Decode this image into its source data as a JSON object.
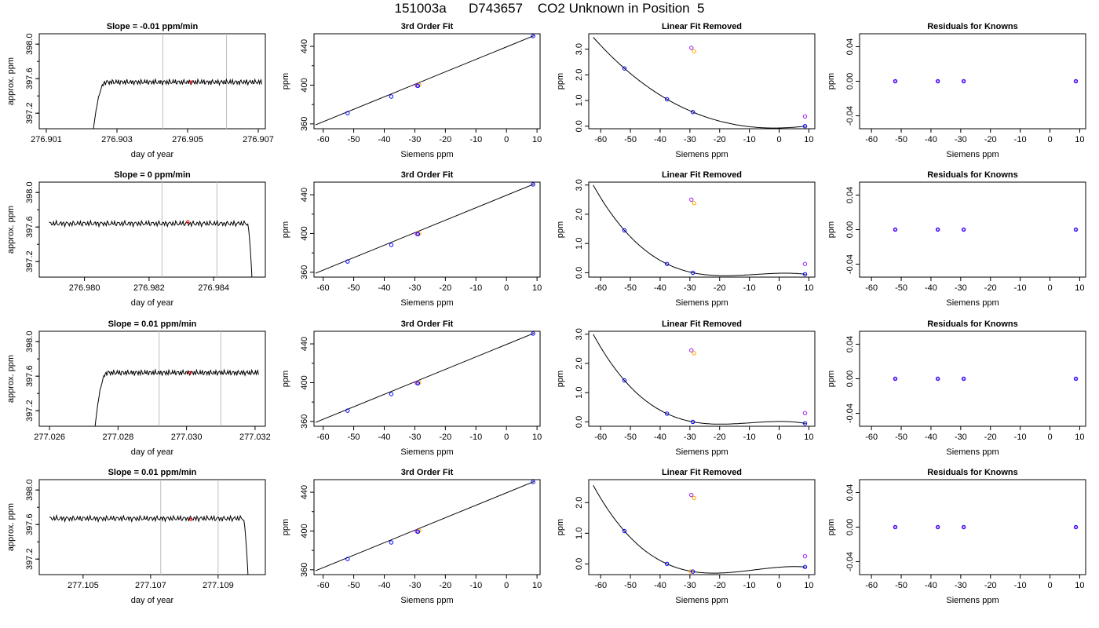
{
  "page": {
    "title": "151003a      D743657    CO2 Unknown in Position  5"
  },
  "colors": {
    "trace": "#000000",
    "vline": "#bebebe",
    "known_point": "#0000ff",
    "unknown_point_a": "#a020f0",
    "unknown_point_b": "#ffa500",
    "time_marker": "#ff0000"
  },
  "chart_data": [
    {
      "id": "r1-time",
      "type": "line",
      "title": "Slope =  -0.01  ppm/min",
      "xlabel": "day of year",
      "ylabel": "approx. ppm",
      "xlim": [
        276.9008,
        276.9072
      ],
      "ylim": [
        397.02,
        398.12
      ],
      "x_ticks": [
        "276.901",
        "276.903",
        "276.905",
        "276.907"
      ],
      "x_tick_values": [
        276.901,
        276.903,
        276.905,
        276.907
      ],
      "y_ticks": [
        "397.2",
        "397.6",
        "398.0"
      ],
      "y_tick_values": [
        397.2,
        397.6,
        398.0
      ],
      "vlines": [
        276.9043,
        276.9061
      ],
      "trace": {
        "start": 276.9023,
        "end": 276.9071,
        "plateau": 397.56,
        "shape": "rise",
        "rise_end": 276.9027,
        "base": 396.9,
        "pre_ramp": 397.35
      },
      "marker": {
        "x": 276.9051,
        "y": 397.56
      }
    },
    {
      "id": "r1-fit",
      "type": "line",
      "title": "3rd Order Fit",
      "xlabel": "Siemens ppm",
      "ylabel": "ppm",
      "xlim": [
        -63,
        11
      ],
      "ylim": [
        355,
        453
      ],
      "x_ticks": [
        "-60",
        "-50",
        "-40",
        "-30",
        "-20",
        "-10",
        "0",
        "10"
      ],
      "x_tick_values": [
        -60,
        -50,
        -40,
        -30,
        -20,
        -10,
        0,
        10
      ],
      "y_ticks": [
        "360",
        "400",
        "440"
      ],
      "y_tick_values": [
        360,
        400,
        440
      ],
      "line": {
        "x": [
          -62.5,
          9
        ],
        "y": [
          359,
          451
        ]
      },
      "known_points": [
        {
          "x": -52,
          "y": 371.1
        },
        {
          "x": -37.7,
          "y": 388.2
        },
        {
          "x": -29,
          "y": 399.3
        },
        {
          "x": 8.7,
          "y": 450.6
        }
      ],
      "unknown_points": [
        {
          "x": -29.3,
          "y": 399.6
        },
        {
          "x": -28.6,
          "y": 400.2
        }
      ]
    },
    {
      "id": "r1-lin",
      "type": "scatter",
      "title": "Linear Fit Removed",
      "xlabel": "Siemens ppm",
      "ylabel": "ppm",
      "xlim": [
        -64,
        12
      ],
      "ylim": [
        -0.1,
        3.6
      ],
      "x_ticks": [
        "-60",
        "-50",
        "-40",
        "-30",
        "-20",
        "-10",
        "0",
        "10"
      ],
      "x_tick_values": [
        -60,
        -50,
        -40,
        -30,
        -20,
        -10,
        0,
        10
      ],
      "y_ticks": [
        "0.0",
        "1.0",
        "2.0",
        "3.0"
      ],
      "y_tick_values": [
        0,
        1,
        2,
        3
      ],
      "curve": {
        "from": -62.5,
        "to": 9,
        "points": [
          [
            -52,
            2.25
          ],
          [
            -37.7,
            1.05
          ],
          [
            -29,
            0.55
          ],
          [
            8.7,
            0.0
          ]
        ]
      },
      "known_points": [
        {
          "x": -52,
          "y": 2.25
        },
        {
          "x": -37.7,
          "y": 1.05
        },
        {
          "x": -29,
          "y": 0.55
        },
        {
          "x": 8.7,
          "y": 0.0
        }
      ],
      "unknown_points": [
        {
          "x": -29.5,
          "y": 3.05
        },
        {
          "x": -28.6,
          "y": 2.92
        },
        {
          "x": 8.7,
          "y": 0.38
        }
      ]
    },
    {
      "id": "r1-res",
      "type": "scatter",
      "title": "Residuals for Knowns",
      "xlabel": "Siemens ppm",
      "ylabel": "ppm",
      "xlim": [
        -64,
        12
      ],
      "ylim": [
        -0.055,
        0.055
      ],
      "x_ticks": [
        "-60",
        "-50",
        "-40",
        "-30",
        "-20",
        "-10",
        "0",
        "10"
      ],
      "x_tick_values": [
        -60,
        -50,
        -40,
        -30,
        -20,
        -10,
        0,
        10
      ],
      "y_ticks": [
        "-0.04",
        "0.00",
        "0.04"
      ],
      "y_tick_values": [
        -0.04,
        0,
        0.04
      ],
      "known_points": [
        {
          "x": -52,
          "y": 0
        },
        {
          "x": -37.7,
          "y": 0
        },
        {
          "x": -29,
          "y": 0
        },
        {
          "x": 8.7,
          "y": 0
        }
      ]
    },
    {
      "id": "r2-time",
      "type": "line",
      "title": "Slope =  0  ppm/min",
      "xlabel": "day of year",
      "ylabel": "approx. ppm",
      "xlim": [
        276.9786,
        276.9856
      ],
      "ylim": [
        397.02,
        398.12
      ],
      "x_ticks": [
        "276.980",
        "276.982",
        "276.984"
      ],
      "x_tick_values": [
        276.98,
        276.982,
        276.984
      ],
      "y_ticks": [
        "397.2",
        "397.6",
        "398.0"
      ],
      "y_tick_values": [
        397.2,
        397.6,
        398.0
      ],
      "vlines": [
        276.9824,
        276.9841
      ],
      "trace": {
        "start": 276.9789,
        "end": 276.9852,
        "plateau": 397.64,
        "shape": "fall",
        "fall_start": 276.98505,
        "base": 396.9
      },
      "marker": {
        "x": 276.9832,
        "y": 397.66
      }
    },
    {
      "id": "r2-fit",
      "type": "line",
      "title": "3rd Order Fit",
      "xlabel": "Siemens ppm",
      "ylabel": "ppm",
      "xlim": [
        -63,
        11
      ],
      "ylim": [
        355,
        453
      ],
      "x_ticks": [
        "-60",
        "-50",
        "-40",
        "-30",
        "-20",
        "-10",
        "0",
        "10"
      ],
      "x_tick_values": [
        -60,
        -50,
        -40,
        -30,
        -20,
        -10,
        0,
        10
      ],
      "y_ticks": [
        "360",
        "400",
        "440"
      ],
      "y_tick_values": [
        360,
        400,
        440
      ],
      "line": {
        "x": [
          -62.5,
          9
        ],
        "y": [
          359,
          451
        ]
      },
      "known_points": [
        {
          "x": -52,
          "y": 371.1
        },
        {
          "x": -37.7,
          "y": 388.2
        },
        {
          "x": -29,
          "y": 399.3
        },
        {
          "x": 8.7,
          "y": 450.6
        }
      ],
      "unknown_points": [
        {
          "x": -29.3,
          "y": 399.7
        },
        {
          "x": -28.6,
          "y": 400.2
        }
      ]
    },
    {
      "id": "r2-lin",
      "type": "scatter",
      "title": "Linear Fit Removed",
      "xlabel": "Siemens ppm",
      "ylabel": "ppm",
      "xlim": [
        -64,
        12
      ],
      "ylim": [
        -0.15,
        3.1
      ],
      "x_ticks": [
        "-60",
        "-50",
        "-40",
        "-30",
        "-20",
        "-10",
        "0",
        "10"
      ],
      "x_tick_values": [
        -60,
        -50,
        -40,
        -30,
        -20,
        -10,
        0,
        10
      ],
      "y_ticks": [
        "0.0",
        "1.0",
        "2.0",
        "3.0"
      ],
      "y_tick_values": [
        0,
        1,
        2,
        3
      ],
      "curve": {
        "from": -62.5,
        "to": 9,
        "points": [
          [
            -52,
            1.45
          ],
          [
            -37.7,
            0.3
          ],
          [
            -29,
            0.0
          ],
          [
            8.7,
            -0.05
          ]
        ]
      },
      "known_points": [
        {
          "x": -52,
          "y": 1.45
        },
        {
          "x": -37.7,
          "y": 0.3
        },
        {
          "x": -29,
          "y": 0.0
        },
        {
          "x": 8.7,
          "y": -0.05
        }
      ],
      "unknown_points": [
        {
          "x": -29.5,
          "y": 2.5
        },
        {
          "x": -28.6,
          "y": 2.38
        },
        {
          "x": 8.7,
          "y": 0.3
        }
      ]
    },
    {
      "id": "r2-res",
      "type": "scatter",
      "title": "Residuals for Knowns",
      "xlabel": "Siemens ppm",
      "ylabel": "ppm",
      "xlim": [
        -64,
        12
      ],
      "ylim": [
        -0.055,
        0.055
      ],
      "x_ticks": [
        "-60",
        "-50",
        "-40",
        "-30",
        "-20",
        "-10",
        "0",
        "10"
      ],
      "x_tick_values": [
        -60,
        -50,
        -40,
        -30,
        -20,
        -10,
        0,
        10
      ],
      "y_ticks": [
        "-0.04",
        "0.00",
        "0.04"
      ],
      "y_tick_values": [
        -0.04,
        0,
        0.04
      ],
      "known_points": [
        {
          "x": -52,
          "y": 0
        },
        {
          "x": -37.7,
          "y": 0
        },
        {
          "x": -29,
          "y": 0
        },
        {
          "x": 8.7,
          "y": 0
        }
      ]
    },
    {
      "id": "r3-time",
      "type": "line",
      "title": "Slope =  0.01  ppm/min",
      "xlabel": "day of year",
      "ylabel": "approx. ppm",
      "xlim": [
        277.0257,
        277.0323
      ],
      "ylim": [
        397.02,
        398.12
      ],
      "x_ticks": [
        "277.026",
        "277.028",
        "277.030",
        "277.032"
      ],
      "x_tick_values": [
        277.026,
        277.028,
        277.03,
        277.032
      ],
      "y_ticks": [
        "397.2",
        "397.6",
        "398.0"
      ],
      "y_tick_values": [
        397.2,
        397.6,
        398.0
      ],
      "vlines": [
        277.0292,
        277.031
      ],
      "trace": {
        "start": 277.0273,
        "end": 277.0321,
        "plateau": 397.64,
        "shape": "rise",
        "rise_end": 277.0277,
        "base": 396.9,
        "pre_ramp": 397.3
      },
      "marker": {
        "x": 277.0301,
        "y": 397.64
      }
    },
    {
      "id": "r3-fit",
      "type": "line",
      "title": "3rd Order Fit",
      "xlabel": "Siemens ppm",
      "ylabel": "ppm",
      "xlim": [
        -63,
        11
      ],
      "ylim": [
        355,
        453
      ],
      "x_ticks": [
        "-60",
        "-50",
        "-40",
        "-30",
        "-20",
        "-10",
        "0",
        "10"
      ],
      "x_tick_values": [
        -60,
        -50,
        -40,
        -30,
        -20,
        -10,
        0,
        10
      ],
      "y_ticks": [
        "360",
        "400",
        "440"
      ],
      "y_tick_values": [
        360,
        400,
        440
      ],
      "line": {
        "x": [
          -62.5,
          9
        ],
        "y": [
          359,
          451
        ]
      },
      "known_points": [
        {
          "x": -52,
          "y": 371.1
        },
        {
          "x": -37.7,
          "y": 388.2
        },
        {
          "x": -29,
          "y": 399.3
        },
        {
          "x": 8.7,
          "y": 450.6
        }
      ],
      "unknown_points": [
        {
          "x": -29.3,
          "y": 399.7
        },
        {
          "x": -28.6,
          "y": 400.2
        }
      ]
    },
    {
      "id": "r3-lin",
      "type": "scatter",
      "title": "Linear Fit Removed",
      "xlabel": "Siemens ppm",
      "ylabel": "ppm",
      "xlim": [
        -64,
        12
      ],
      "ylim": [
        -0.15,
        3.1
      ],
      "x_ticks": [
        "-60",
        "-50",
        "-40",
        "-30",
        "-20",
        "-10",
        "0",
        "10"
      ],
      "x_tick_values": [
        -60,
        -50,
        -40,
        -30,
        -20,
        -10,
        0,
        10
      ],
      "y_ticks": [
        "0.0",
        "1.0",
        "2.0",
        "3.0"
      ],
      "y_tick_values": [
        0,
        1,
        2,
        3
      ],
      "curve": {
        "from": -62.5,
        "to": 9,
        "points": [
          [
            -52,
            1.42
          ],
          [
            -37.7,
            0.28
          ],
          [
            -29,
            0.0
          ],
          [
            8.7,
            -0.05
          ]
        ]
      },
      "known_points": [
        {
          "x": -52,
          "y": 1.42
        },
        {
          "x": -37.7,
          "y": 0.28
        },
        {
          "x": -29,
          "y": 0.0
        },
        {
          "x": 8.7,
          "y": -0.05
        }
      ],
      "unknown_points": [
        {
          "x": -29.5,
          "y": 2.45
        },
        {
          "x": -28.6,
          "y": 2.35
        },
        {
          "x": 8.7,
          "y": 0.3
        }
      ]
    },
    {
      "id": "r3-res",
      "type": "scatter",
      "title": "Residuals for Knowns",
      "xlabel": "Siemens ppm",
      "ylabel": "ppm",
      "xlim": [
        -64,
        12
      ],
      "ylim": [
        -0.055,
        0.055
      ],
      "x_ticks": [
        "-60",
        "-50",
        "-40",
        "-30",
        "-20",
        "-10",
        "0",
        "10"
      ],
      "x_tick_values": [
        -60,
        -50,
        -40,
        -30,
        -20,
        -10,
        0,
        10
      ],
      "y_ticks": [
        "-0.04",
        "0.00",
        "0.04"
      ],
      "y_tick_values": [
        -0.04,
        0,
        0.04
      ],
      "known_points": [
        {
          "x": -52,
          "y": 0
        },
        {
          "x": -37.7,
          "y": 0
        },
        {
          "x": -29,
          "y": 0
        },
        {
          "x": 8.7,
          "y": 0
        }
      ]
    },
    {
      "id": "r4-time",
      "type": "line",
      "title": "Slope =  0.01  ppm/min",
      "xlabel": "day of year",
      "ylabel": "approx. ppm",
      "xlim": [
        277.1037,
        277.1104
      ],
      "ylim": [
        397.02,
        398.12
      ],
      "x_ticks": [
        "277.105",
        "277.107",
        "277.109"
      ],
      "x_tick_values": [
        277.105,
        277.107,
        277.109
      ],
      "y_ticks": [
        "397.2",
        "397.6",
        "398.0"
      ],
      "y_tick_values": [
        397.2,
        397.6,
        398.0
      ],
      "vlines": [
        277.1073,
        277.109
      ],
      "trace": {
        "start": 277.104,
        "end": 277.1099,
        "plateau": 397.67,
        "shape": "fall",
        "fall_start": 277.10975,
        "base": 396.9
      },
      "marker": {
        "x": 277.1082,
        "y": 397.66
      }
    },
    {
      "id": "r4-fit",
      "type": "line",
      "title": "3rd Order Fit",
      "xlabel": "Siemens ppm",
      "ylabel": "ppm",
      "xlim": [
        -63,
        11
      ],
      "ylim": [
        355,
        453
      ],
      "x_ticks": [
        "-60",
        "-50",
        "-40",
        "-30",
        "-20",
        "-10",
        "0",
        "10"
      ],
      "x_tick_values": [
        -60,
        -50,
        -40,
        -30,
        -20,
        -10,
        0,
        10
      ],
      "y_ticks": [
        "360",
        "400",
        "440"
      ],
      "y_tick_values": [
        360,
        400,
        440
      ],
      "line": {
        "x": [
          -62.5,
          9
        ],
        "y": [
          359,
          451
        ]
      },
      "known_points": [
        {
          "x": -52,
          "y": 371.1
        },
        {
          "x": -37.7,
          "y": 388.2
        },
        {
          "x": -29,
          "y": 399.3
        },
        {
          "x": 8.7,
          "y": 450.6
        }
      ],
      "unknown_points": [
        {
          "x": -29.3,
          "y": 399.7
        },
        {
          "x": -28.6,
          "y": 400.2
        }
      ]
    },
    {
      "id": "r4-lin",
      "type": "scatter",
      "title": "Linear Fit Removed",
      "xlabel": "Siemens ppm",
      "ylabel": "ppm",
      "xlim": [
        -64,
        12
      ],
      "ylim": [
        -0.35,
        2.75
      ],
      "x_ticks": [
        "-60",
        "-50",
        "-40",
        "-30",
        "-20",
        "-10",
        "0",
        "10"
      ],
      "x_tick_values": [
        -60,
        -50,
        -40,
        -30,
        -20,
        -10,
        0,
        10
      ],
      "y_ticks": [
        "0.0",
        "1.0",
        "2.0"
      ],
      "y_tick_values": [
        0,
        1,
        2
      ],
      "curve": {
        "from": -62.5,
        "to": 9,
        "points": [
          [
            -52,
            1.07
          ],
          [
            -37.7,
            0.0
          ],
          [
            -29,
            -0.25
          ],
          [
            8.7,
            -0.1
          ]
        ]
      },
      "known_points": [
        {
          "x": -52,
          "y": 1.07
        },
        {
          "x": -37.7,
          "y": 0.0
        },
        {
          "x": -29,
          "y": -0.25
        },
        {
          "x": 8.7,
          "y": -0.1
        }
      ],
      "unknown_points": [
        {
          "x": -29.5,
          "y": 2.25
        },
        {
          "x": -28.6,
          "y": 2.15
        },
        {
          "x": 8.7,
          "y": 0.25
        },
        {
          "x": -29.7,
          "y": -0.25
        }
      ]
    },
    {
      "id": "r4-res",
      "type": "scatter",
      "title": "Residuals for Knowns",
      "xlabel": "Siemens ppm",
      "ylabel": "ppm",
      "xlim": [
        -64,
        12
      ],
      "ylim": [
        -0.055,
        0.055
      ],
      "x_ticks": [
        "-60",
        "-50",
        "-40",
        "-30",
        "-20",
        "-10",
        "0",
        "10"
      ],
      "x_tick_values": [
        -60,
        -50,
        -40,
        -30,
        -20,
        -10,
        0,
        10
      ],
      "y_ticks": [
        "-0.04",
        "0.00",
        "0.04"
      ],
      "y_tick_values": [
        -0.04,
        0,
        0.04
      ],
      "known_points": [
        {
          "x": -52,
          "y": 0
        },
        {
          "x": -37.7,
          "y": 0
        },
        {
          "x": -29,
          "y": 0
        },
        {
          "x": 8.7,
          "y": 0
        }
      ]
    }
  ]
}
